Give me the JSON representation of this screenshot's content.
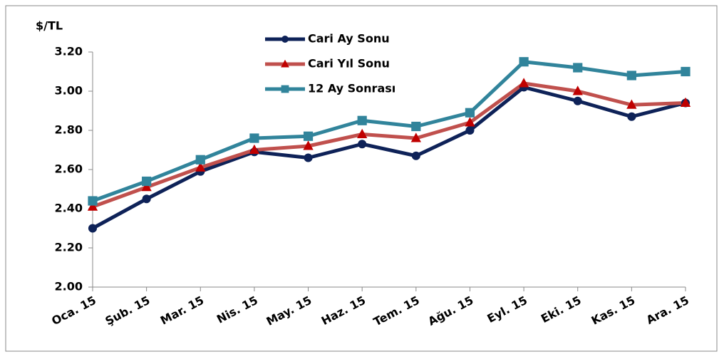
{
  "chart_data": {
    "type": "line",
    "y_label": "$/TL",
    "categories": [
      "Oca. 15",
      "Şub. 15",
      "Mar. 15",
      "Nis. 15",
      "May. 15",
      "Haz. 15",
      "Tem. 15",
      "Ağu. 15",
      "Eyl. 15",
      "Eki. 15",
      "Kas. 15",
      "Ara. 15"
    ],
    "series": [
      {
        "name": "Cari Ay Sonu",
        "color": "#0e2258",
        "marker": "circle",
        "values": [
          2.3,
          2.45,
          2.59,
          2.69,
          2.66,
          2.73,
          2.67,
          2.8,
          3.02,
          2.95,
          2.87,
          2.94
        ]
      },
      {
        "name": "Cari Yıl Sonu",
        "color": "#c0504d",
        "marker": "triangle",
        "values": [
          2.41,
          2.51,
          2.61,
          2.7,
          2.72,
          2.78,
          2.76,
          2.84,
          3.04,
          3.0,
          2.93,
          2.94
        ]
      },
      {
        "name": "12 Ay Sonrası",
        "color": "#31849b",
        "marker": "square",
        "values": [
          2.44,
          2.54,
          2.65,
          2.76,
          2.77,
          2.85,
          2.82,
          2.89,
          3.15,
          3.12,
          3.08,
          3.1
        ]
      }
    ],
    "ylim": [
      2,
      3.2
    ],
    "yticks": [
      {
        "value": 2,
        "label": "2.00"
      },
      {
        "value": 2.2,
        "label": "2.20"
      },
      {
        "value": 2.4,
        "label": "2.40"
      },
      {
        "value": 2.6,
        "label": "2.60"
      },
      {
        "value": 2.8,
        "label": "2.80"
      },
      {
        "value": 3,
        "label": "3.00"
      },
      {
        "value": 3.2,
        "label": "3.20"
      }
    ],
    "grid": false
  }
}
